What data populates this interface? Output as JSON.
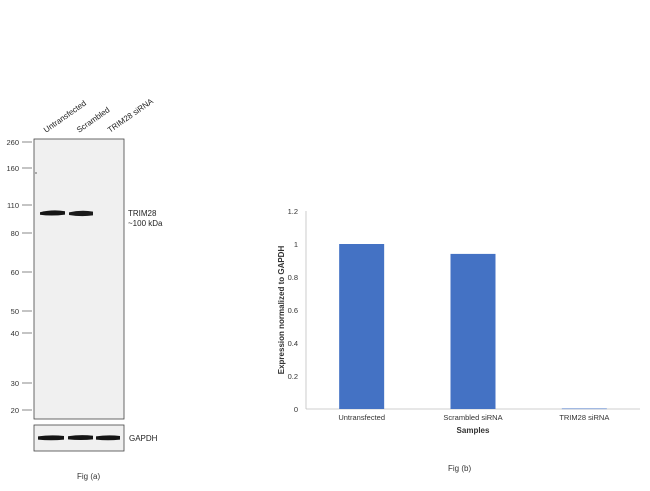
{
  "blot": {
    "lane_labels": [
      "Untransfected",
      "Scrambled",
      "TRIM28 siRNA"
    ],
    "marker_labels": [
      "260",
      "160",
      "110",
      "80",
      "60",
      "50",
      "40",
      "30",
      "20"
    ],
    "target_label": "TRIM28",
    "target_size": "~100 kDa",
    "loading_control": "GAPDH",
    "caption": "Fig (a)"
  },
  "chart_caption": "Fig (b)",
  "chart_data": {
    "type": "bar",
    "categories": [
      "Untransfected",
      "Scrambled siRNA",
      "TRIM28 siRNA"
    ],
    "values": [
      1.0,
      0.94,
      0.003
    ],
    "xlabel": "Samples",
    "ylabel": "Expression  normalized to GAPDH",
    "ylim": [
      0,
      1.2
    ],
    "yticks": [
      "0",
      "0.2",
      "0.4",
      "0.6",
      "0.8",
      "1",
      "1.2"
    ],
    "bar_color": "#4472c4",
    "grid": false,
    "legend": "none"
  }
}
